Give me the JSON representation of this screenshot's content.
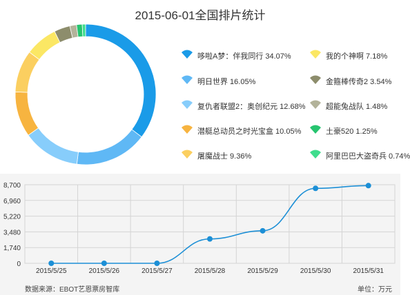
{
  "chart_data": [
    {
      "type": "pie",
      "title": "2015-06-01全国排片统计",
      "slices": [
        {
          "label": "哆啦A梦：伴我同行",
          "value": 34.07,
          "display": "哆啦A梦：伴我同行 34.07%",
          "color": "#1a9be8"
        },
        {
          "label": "明日世界",
          "value": 16.05,
          "display": "明日世界 16.05%",
          "color": "#5fb8f5"
        },
        {
          "label": "复仇者联盟2：奥创纪元",
          "value": 12.68,
          "display": "复仇者联盟2：奥创纪元 12.68%",
          "color": "#87cdfb"
        },
        {
          "label": "潜艇总动员之时光宝盒",
          "value": 10.05,
          "display": "潜艇总动员之时光宝盒 10.05%",
          "color": "#f7b440"
        },
        {
          "label": "屠魔战士",
          "value": 9.36,
          "display": "屠魔战士 9.36%",
          "color": "#fbcf60"
        },
        {
          "label": "我的个神啊",
          "value": 7.18,
          "display": "我的个神啊 7.18%",
          "color": "#fbe764"
        },
        {
          "label": "金箍棒传奇2",
          "value": 3.54,
          "display": "金箍棒传奇2 3.54%",
          "color": "#8d8d6c"
        },
        {
          "label": "超能兔战队",
          "value": 1.48,
          "display": "超能兔战队 1.48%",
          "color": "#b3b39a"
        },
        {
          "label": "土豪520",
          "value": 1.25,
          "display": "土豪520 1.25%",
          "color": "#26c46f"
        },
        {
          "label": "阿里巴巴大盗奇兵",
          "value": 0.74,
          "display": "阿里巴巴大盗奇兵 0.74%",
          "color": "#3fdd8d"
        }
      ]
    },
    {
      "type": "line",
      "x": [
        "2015/5/25",
        "2015/5/26",
        "2015/5/27",
        "2015/5/28",
        "2015/5/29",
        "2015/5/30",
        "2015/5/31"
      ],
      "values": [
        0,
        0,
        0,
        2700,
        3600,
        8300,
        8600
      ],
      "ylim": [
        0,
        8700
      ],
      "yticks": [
        "0",
        "1,740",
        "3,480",
        "5,220",
        "6,960",
        "8,700"
      ],
      "grid": true,
      "line_color": "#1c8fd6"
    }
  ],
  "footer": {
    "source": "数据来源：EBOT艺恩票房智库",
    "unit": "单位：万元"
  }
}
